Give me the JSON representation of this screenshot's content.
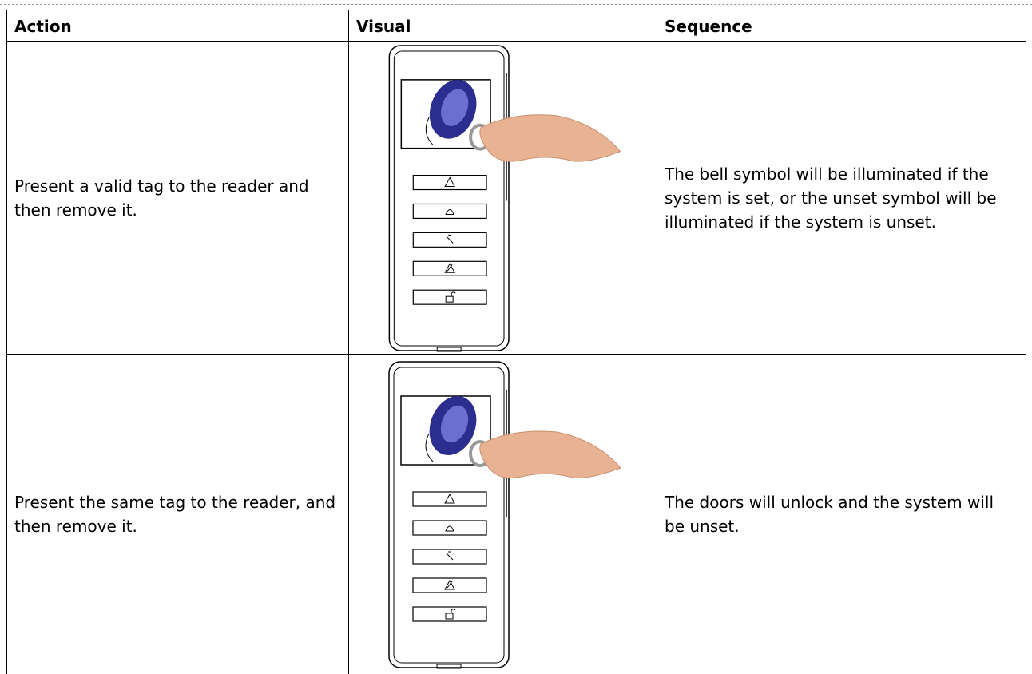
{
  "table": {
    "headers": [
      "Action",
      "Visual",
      "Sequence"
    ],
    "rows": [
      {
        "action": "Present a valid tag to the reader and then remove it.",
        "sequence": "The bell symbol will be illuminated if the system is set, or the unset symbol will be illuminated if the system is unset."
      },
      {
        "action": "Present the same tag to the reader, and then remove it.",
        "sequence": "The doors will unlock and the system will be unset."
      }
    ]
  }
}
